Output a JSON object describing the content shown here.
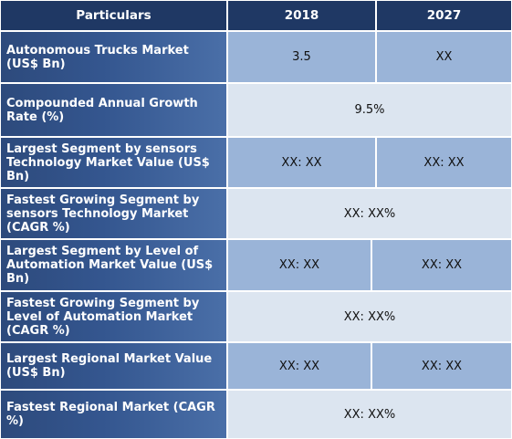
{
  "table": {
    "header": {
      "particulars": "Particulars",
      "year_2018": "2018",
      "year_2027": "2027"
    },
    "rows": [
      {
        "label": "Autonomous Trucks Market (US$ Bn)",
        "value_2018": "3.5",
        "value_2027": "XX"
      },
      {
        "label": "Compounded Annual Growth Rate (%)",
        "value": "9.5%"
      },
      {
        "label": "Largest Segment by sensors Technology  Market Value (US$ Bn)",
        "value_2018": "XX: XX",
        "value_2027": "XX: XX"
      },
      {
        "label": "Fastest Growing Segment by sensors Technology Market (CAGR %)",
        "value": "XX: XX%"
      },
      {
        "label": "Largest Segment by Level of Automation Market Value (US$ Bn)",
        "value_2018": "XX: XX",
        "value_2027": "XX: XX"
      },
      {
        "label": "Fastest Growing Segment by Level of Automation Market (CAGR %)",
        "value": "XX: XX%"
      },
      {
        "label": "Largest Regional Market Value (US$ Bn)",
        "value_2018": "XX: XX",
        "value_2027": "XX: XX"
      },
      {
        "label": "Fastest Regional Market (CAGR %)",
        "value": "XX: XX%"
      }
    ]
  }
}
